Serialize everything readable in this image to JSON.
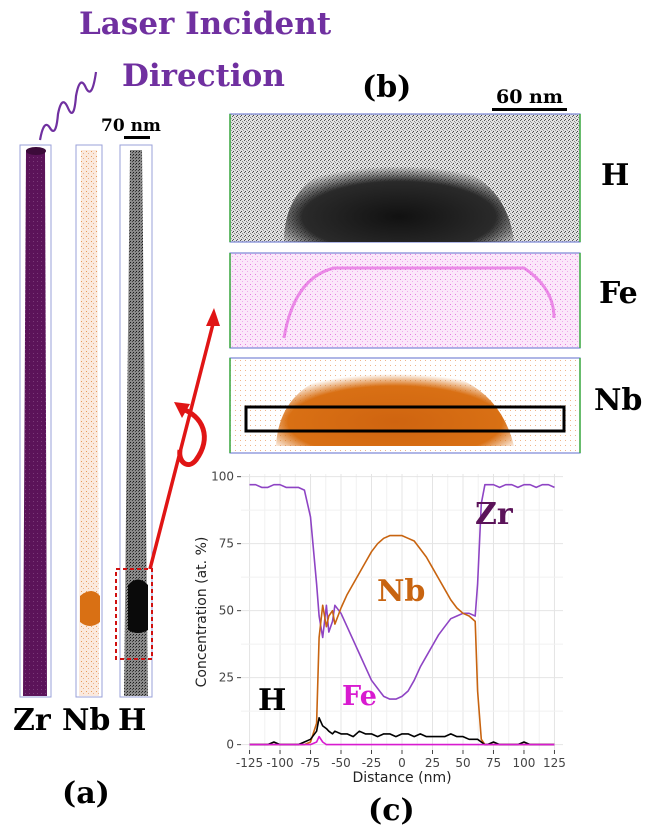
{
  "header": {
    "line1": "Laser Incident",
    "line2": "Direction"
  },
  "panel_a": {
    "letter": "(a)",
    "scale_label": "70 nm",
    "columns": [
      {
        "label": "Zr",
        "color": "#5b1359"
      },
      {
        "label": "Nb",
        "color": "#d97014"
      },
      {
        "label": "H",
        "color": "#000000"
      }
    ]
  },
  "panel_b": {
    "letter": "(b)",
    "scale_label": "60 nm",
    "maps": [
      {
        "label": "H",
        "color": "#000000"
      },
      {
        "label": "Fe",
        "color": "#d81bd0"
      },
      {
        "label": "Nb",
        "color": "#d97014"
      }
    ]
  },
  "panel_c": {
    "letter": "(c)",
    "inline_labels": {
      "Zr": "Zr",
      "Nb": "Nb",
      "H": "H",
      "Fe": "Fe"
    }
  },
  "chart_data": {
    "type": "line",
    "xlabel": "Distance (nm)",
    "ylabel": "Concentration (at. %)",
    "xlim": [
      -132,
      132
    ],
    "ylim": [
      -2,
      101
    ],
    "xticks": [
      -125,
      -100,
      -75,
      -50,
      -25,
      0,
      25,
      50,
      75,
      100,
      125
    ],
    "yticks": [
      0,
      25,
      50,
      75,
      100
    ],
    "grid": true,
    "x": [
      -125,
      -120,
      -115,
      -110,
      -105,
      -100,
      -95,
      -90,
      -85,
      -80,
      -75,
      -70,
      -68,
      -65,
      -62,
      -60,
      -57,
      -55,
      -50,
      -45,
      -40,
      -35,
      -30,
      -25,
      -20,
      -15,
      -10,
      -5,
      0,
      5,
      10,
      15,
      20,
      25,
      30,
      35,
      40,
      45,
      50,
      55,
      60,
      62,
      65,
      68,
      70,
      75,
      80,
      85,
      90,
      95,
      100,
      105,
      110,
      115,
      120,
      125
    ],
    "series": [
      {
        "name": "Zr",
        "color": "#8e44c4",
        "values": [
          97,
          97,
          96,
          96,
          97,
          97,
          96,
          96,
          96,
          95,
          85,
          60,
          48,
          40,
          52,
          42,
          46,
          52,
          49,
          44,
          39,
          34,
          29,
          24,
          21,
          18,
          17,
          17,
          18,
          20,
          24,
          29,
          33,
          37,
          41,
          44,
          47,
          48,
          49,
          49,
          48,
          60,
          90,
          97,
          97,
          97,
          96,
          97,
          97,
          96,
          97,
          97,
          96,
          97,
          97,
          96
        ]
      },
      {
        "name": "Nb",
        "color": "#c86410",
        "values": [
          0,
          0,
          0,
          0,
          0,
          0,
          0,
          0,
          0,
          0,
          1,
          8,
          40,
          52,
          44,
          48,
          50,
          45,
          51,
          56,
          60,
          64,
          68,
          72,
          75,
          77,
          78,
          78,
          78,
          77,
          76,
          73,
          70,
          66,
          62,
          58,
          54,
          51,
          49,
          48,
          46,
          20,
          2,
          0,
          0,
          0,
          0,
          0,
          0,
          0,
          0,
          0,
          0,
          0,
          0,
          0
        ]
      },
      {
        "name": "H",
        "color": "#000000",
        "values": [
          0,
          0,
          0,
          0,
          1,
          0,
          0,
          0,
          0,
          1,
          2,
          5,
          10,
          7,
          6,
          5,
          4,
          5,
          4,
          4,
          3,
          5,
          4,
          4,
          3,
          4,
          4,
          3,
          4,
          4,
          3,
          4,
          3,
          3,
          3,
          3,
          4,
          3,
          3,
          2,
          2,
          2,
          1,
          0,
          0,
          1,
          0,
          0,
          0,
          0,
          1,
          0,
          0,
          0,
          0,
          0
        ]
      },
      {
        "name": "Fe",
        "color": "#d81bd0",
        "values": [
          0,
          0,
          0,
          0,
          0,
          0,
          0,
          0,
          0,
          0,
          0,
          1,
          3,
          1,
          0,
          0,
          0,
          0,
          0,
          0,
          0,
          0,
          0,
          0,
          0,
          0,
          0,
          0,
          0,
          0,
          0,
          0,
          0,
          0,
          0,
          0,
          0,
          0,
          0,
          0,
          0,
          0,
          0,
          0,
          0,
          0,
          0,
          0,
          0,
          0,
          0,
          0,
          0,
          0,
          0,
          0
        ]
      }
    ]
  }
}
